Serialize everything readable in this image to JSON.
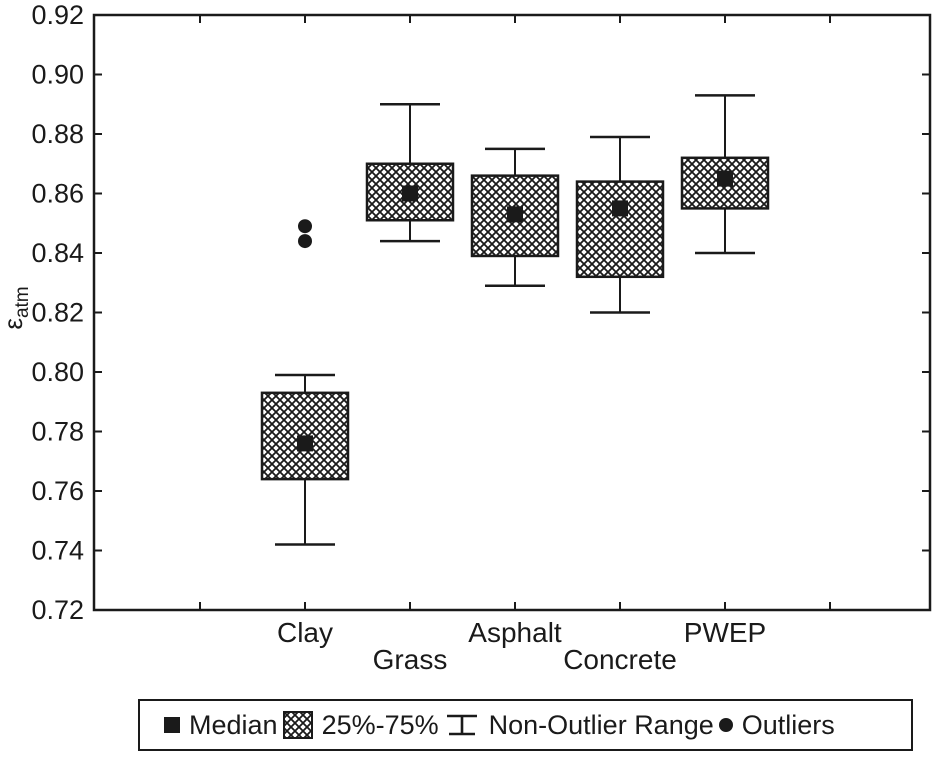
{
  "colors": {
    "ink": "#1a1a1a",
    "background": "#ffffff"
  },
  "chart_data": {
    "type": "box",
    "ylabel": {
      "base": "ε",
      "sub": "atm"
    },
    "ylim": [
      0.72,
      0.92
    ],
    "ytick_step": 0.02,
    "ytick_labels": [
      "0.92",
      "0.90",
      "0.88",
      "0.86",
      "0.84",
      "0.82",
      "0.80",
      "0.78",
      "0.76",
      "0.74",
      "0.72"
    ],
    "categories": [
      "Clay",
      "Grass",
      "Asphalt",
      "Concrete",
      "PWEP"
    ],
    "series": [
      {
        "category": "Clay",
        "median": 0.776,
        "q1": 0.764,
        "q3": 0.793,
        "whisker_low": 0.742,
        "whisker_high": 0.799,
        "outliers": [
          0.849,
          0.844
        ]
      },
      {
        "category": "Grass",
        "median": 0.86,
        "q1": 0.851,
        "q3": 0.87,
        "whisker_low": 0.844,
        "whisker_high": 0.89,
        "outliers": []
      },
      {
        "category": "Asphalt",
        "median": 0.853,
        "q1": 0.839,
        "q3": 0.866,
        "whisker_low": 0.829,
        "whisker_high": 0.875,
        "outliers": []
      },
      {
        "category": "Concrete",
        "median": 0.855,
        "q1": 0.832,
        "q3": 0.864,
        "whisker_low": 0.82,
        "whisker_high": 0.879,
        "outliers": []
      },
      {
        "category": "PWEP",
        "median": 0.865,
        "q1": 0.855,
        "q3": 0.872,
        "whisker_low": 0.84,
        "whisker_high": 0.893,
        "outliers": []
      }
    ],
    "grid": false,
    "legend_position": "bottom",
    "legend": [
      {
        "marker": "filled-square-icon",
        "label": "Median"
      },
      {
        "marker": "crosshatch-box-icon",
        "label": "25%-75%"
      },
      {
        "marker": "whisker-icon",
        "label": "Non-Outlier Range"
      },
      {
        "marker": "filled-circle-icon",
        "label": "Outliers"
      }
    ]
  }
}
